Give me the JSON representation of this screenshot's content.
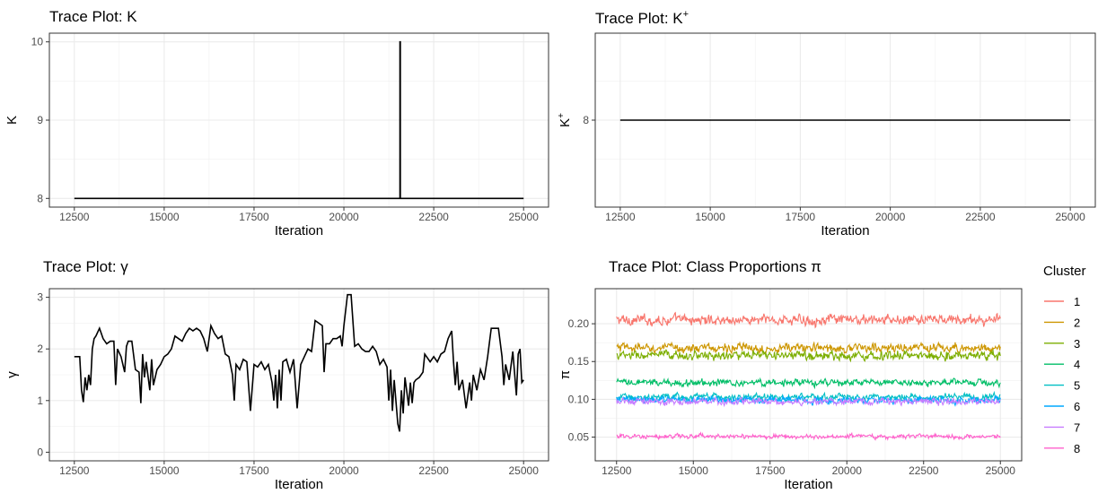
{
  "chart_data": [
    {
      "type": "line",
      "title": "Trace Plot: K",
      "xlabel": "Iteration",
      "ylabel": "K",
      "xlim": [
        12500,
        25000
      ],
      "ylim": [
        8,
        10
      ],
      "x_ticks": [
        "12500",
        "15000",
        "17500",
        "20000",
        "22500",
        "25000"
      ],
      "y_ticks": [
        "8",
        "9",
        "10"
      ],
      "grid": true,
      "series": [
        {
          "color": "#000000",
          "points": [
            [
              12500,
              8
            ],
            [
              21560,
              8
            ],
            [
              21560,
              10
            ],
            [
              21570,
              10
            ],
            [
              21570,
              8
            ],
            [
              25000,
              8
            ]
          ]
        }
      ]
    },
    {
      "type": "line",
      "title": "Trace Plot: K",
      "title_sup": "+",
      "xlabel": "Iteration",
      "ylabel": "K",
      "ylabel_sup": "+",
      "xlim": [
        12500,
        25000
      ],
      "ylim": [
        7,
        9
      ],
      "x_ticks": [
        "12500",
        "15000",
        "17500",
        "20000",
        "22500",
        "25000"
      ],
      "y_ticks": [
        "8"
      ],
      "grid": true,
      "series": [
        {
          "color": "#000000",
          "points": [
            [
              12500,
              8
            ],
            [
              25000,
              8
            ]
          ]
        }
      ]
    },
    {
      "type": "line",
      "title": "Trace Plot:  γ",
      "xlabel": "Iteration",
      "ylabel": "γ",
      "xlim": [
        12500,
        25000
      ],
      "ylim": [
        0,
        3
      ],
      "x_ticks": [
        "12500",
        "15000",
        "17500",
        "20000",
        "22500",
        "25000"
      ],
      "y_ticks": [
        "0",
        "1",
        "2",
        "3"
      ],
      "grid": true,
      "series": [
        {
          "color": "#000000",
          "points": [
            [
              12500,
              1.85
            ],
            [
              12650,
              1.85
            ],
            [
              12700,
              1.2
            ],
            [
              12750,
              0.97
            ],
            [
              12800,
              1.45
            ],
            [
              12850,
              1.2
            ],
            [
              12900,
              1.5
            ],
            [
              12950,
              1.3
            ],
            [
              13000,
              2.0
            ],
            [
              13050,
              2.2
            ],
            [
              13100,
              2.25
            ],
            [
              13200,
              2.4
            ],
            [
              13300,
              2.2
            ],
            [
              13400,
              2.1
            ],
            [
              13500,
              2.15
            ],
            [
              13600,
              2.15
            ],
            [
              13650,
              1.3
            ],
            [
              13700,
              2.0
            ],
            [
              13800,
              1.85
            ],
            [
              13900,
              1.55
            ],
            [
              13950,
              2.05
            ],
            [
              14000,
              2.15
            ],
            [
              14100,
              2.15
            ],
            [
              14200,
              1.6
            ],
            [
              14300,
              1.55
            ],
            [
              14350,
              0.95
            ],
            [
              14400,
              1.9
            ],
            [
              14450,
              1.45
            ],
            [
              14500,
              1.75
            ],
            [
              14600,
              1.2
            ],
            [
              14650,
              1.8
            ],
            [
              14700,
              1.3
            ],
            [
              14800,
              1.6
            ],
            [
              14900,
              1.7
            ],
            [
              15000,
              1.85
            ],
            [
              15100,
              1.9
            ],
            [
              15200,
              2.0
            ],
            [
              15300,
              2.25
            ],
            [
              15400,
              2.2
            ],
            [
              15500,
              2.15
            ],
            [
              15600,
              2.3
            ],
            [
              15700,
              2.4
            ],
            [
              15800,
              2.35
            ],
            [
              15900,
              2.4
            ],
            [
              16000,
              2.35
            ],
            [
              16100,
              2.2
            ],
            [
              16200,
              1.95
            ],
            [
              16300,
              2.45
            ],
            [
              16400,
              2.3
            ],
            [
              16500,
              2.2
            ],
            [
              16600,
              2.25
            ],
            [
              16700,
              1.9
            ],
            [
              16800,
              1.85
            ],
            [
              16900,
              1.5
            ],
            [
              16950,
              1.0
            ],
            [
              17000,
              1.7
            ],
            [
              17100,
              1.6
            ],
            [
              17200,
              1.8
            ],
            [
              17300,
              1.75
            ],
            [
              17400,
              0.8
            ],
            [
              17500,
              1.7
            ],
            [
              17600,
              1.65
            ],
            [
              17700,
              1.75
            ],
            [
              17800,
              1.6
            ],
            [
              17900,
              1.7
            ],
            [
              18000,
              1.35
            ],
            [
              18050,
              1.0
            ],
            [
              18100,
              1.5
            ],
            [
              18150,
              0.85
            ],
            [
              18200,
              1.6
            ],
            [
              18250,
              1.0
            ],
            [
              18300,
              1.75
            ],
            [
              18400,
              1.8
            ],
            [
              18500,
              1.55
            ],
            [
              18600,
              1.8
            ],
            [
              18700,
              0.85
            ],
            [
              18800,
              1.7
            ],
            [
              18900,
              1.85
            ],
            [
              19000,
              2.0
            ],
            [
              19100,
              1.95
            ],
            [
              19200,
              2.55
            ],
            [
              19300,
              2.5
            ],
            [
              19400,
              2.45
            ],
            [
              19450,
              1.55
            ],
            [
              19500,
              2.1
            ],
            [
              19600,
              2.1
            ],
            [
              19700,
              2.2
            ],
            [
              19800,
              2.2
            ],
            [
              19900,
              2.25
            ],
            [
              19950,
              2.05
            ],
            [
              20000,
              2.45
            ],
            [
              20100,
              3.05
            ],
            [
              20200,
              3.05
            ],
            [
              20300,
              2.05
            ],
            [
              20400,
              2.1
            ],
            [
              20500,
              2.0
            ],
            [
              20600,
              1.95
            ],
            [
              20700,
              1.95
            ],
            [
              20800,
              2.05
            ],
            [
              20900,
              1.95
            ],
            [
              21000,
              1.7
            ],
            [
              21100,
              1.8
            ],
            [
              21200,
              1.65
            ],
            [
              21250,
              1.0
            ],
            [
              21300,
              1.6
            ],
            [
              21350,
              0.8
            ],
            [
              21400,
              1.4
            ],
            [
              21500,
              0.55
            ],
            [
              21550,
              0.4
            ],
            [
              21600,
              1.2
            ],
            [
              21650,
              0.75
            ],
            [
              21700,
              1.45
            ],
            [
              21800,
              0.9
            ],
            [
              21850,
              1.35
            ],
            [
              21900,
              0.95
            ],
            [
              21950,
              1.35
            ],
            [
              22000,
              1.4
            ],
            [
              22100,
              1.45
            ],
            [
              22200,
              1.55
            ],
            [
              22250,
              1.9
            ],
            [
              22300,
              1.85
            ],
            [
              22400,
              1.75
            ],
            [
              22500,
              1.85
            ],
            [
              22600,
              1.75
            ],
            [
              22700,
              1.9
            ],
            [
              22800,
              1.95
            ],
            [
              22900,
              2.2
            ],
            [
              23000,
              2.35
            ],
            [
              23050,
              1.75
            ],
            [
              23100,
              1.3
            ],
            [
              23150,
              1.75
            ],
            [
              23200,
              1.2
            ],
            [
              23300,
              1.4
            ],
            [
              23400,
              0.85
            ],
            [
              23500,
              1.35
            ],
            [
              23550,
              1.0
            ],
            [
              23600,
              1.5
            ],
            [
              23700,
              1.2
            ],
            [
              23800,
              1.6
            ],
            [
              23900,
              1.4
            ],
            [
              24000,
              1.85
            ],
            [
              24100,
              2.4
            ],
            [
              24200,
              2.4
            ],
            [
              24300,
              2.4
            ],
            [
              24400,
              1.85
            ],
            [
              24450,
              1.3
            ],
            [
              24500,
              1.7
            ],
            [
              24600,
              1.4
            ],
            [
              24700,
              1.95
            ],
            [
              24800,
              1.1
            ],
            [
              24850,
              1.9
            ],
            [
              24900,
              2.0
            ],
            [
              24950,
              1.35
            ],
            [
              25000,
              1.4
            ]
          ]
        }
      ]
    },
    {
      "type": "line",
      "title": "Trace Plot: Class Proportions  π",
      "xlabel": "Iteration",
      "ylabel": "π",
      "xlim": [
        12500,
        25000
      ],
      "ylim": [
        0.03,
        0.235
      ],
      "x_ticks": [
        "12500",
        "15000",
        "17500",
        "20000",
        "22500",
        "25000"
      ],
      "y_ticks": [
        "0.05",
        "0.10",
        "0.15",
        "0.20"
      ],
      "grid": true,
      "legend": {
        "title": "Cluster",
        "position": "right"
      },
      "series": [
        {
          "name": "1",
          "color": "#F8766D",
          "mean": 0.205,
          "noise": 0.009
        },
        {
          "name": "2",
          "color": "#CD9600",
          "mean": 0.168,
          "noise": 0.008
        },
        {
          "name": "3",
          "color": "#7CAE00",
          "mean": 0.158,
          "noise": 0.008
        },
        {
          "name": "4",
          "color": "#00BE67",
          "mean": 0.122,
          "noise": 0.006
        },
        {
          "name": "5",
          "color": "#00BFC4",
          "mean": 0.103,
          "noise": 0.006
        },
        {
          "name": "6",
          "color": "#00A9FF",
          "mean": 0.099,
          "noise": 0.006
        },
        {
          "name": "7",
          "color": "#C77CFF",
          "mean": 0.097,
          "noise": 0.006
        },
        {
          "name": "8",
          "color": "#FF61CC",
          "mean": 0.051,
          "noise": 0.004
        }
      ]
    }
  ]
}
